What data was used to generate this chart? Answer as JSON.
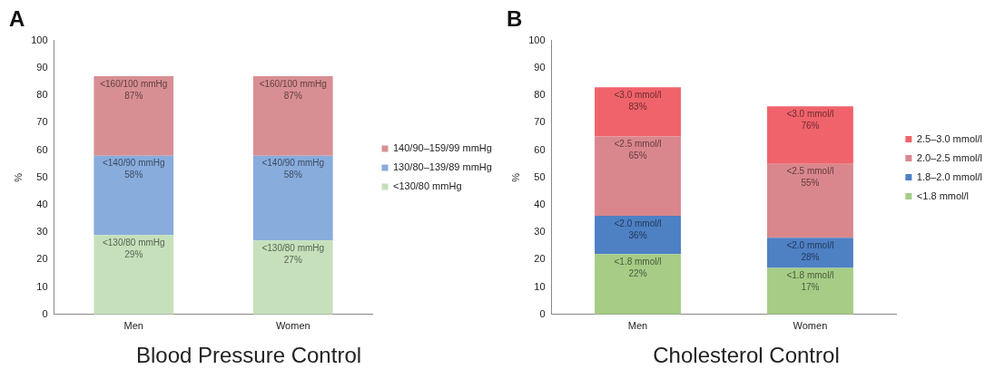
{
  "chart_data": [
    {
      "type": "bar",
      "title": "A",
      "ylabel": "%",
      "categories": [
        "Men",
        "Women"
      ],
      "stacked": true,
      "legend": "right",
      "grid": false,
      "ylim": [
        0,
        100
      ],
      "yticks": [
        0,
        10,
        20,
        30,
        40,
        50,
        60,
        70,
        80,
        90,
        100
      ],
      "annotations": [
        "Blood Pressure Control",
        {
          "text": "<130/80 mmHg\n29%",
          "x": "Men",
          "y": 29
        },
        {
          "text": "<130/80 mmHg\n27%",
          "x": "Women",
          "y": 27
        },
        {
          "text": "<140/90 mmHg\n58%",
          "x": "Men",
          "y": 58
        },
        {
          "text": "<140/90 mmHg\n58%",
          "x": "Women",
          "y": 58
        },
        {
          "text": "<160/100 mmHg\n87%",
          "x": "Men",
          "y": 87
        },
        {
          "text": "<160/100 mmHg\n87%",
          "x": "Women",
          "y": 87
        }
      ],
      "series": [
        {
          "name": "<130/80 mmHg",
          "color": "#c5e0bb",
          "values": [
            29,
            27
          ]
        },
        {
          "name": "130/80–139/89 mmHg",
          "color": "#88acdc",
          "values": [
            29,
            31
          ]
        },
        {
          "name": "140/90–159/99 mmHg",
          "color": "#d88f93",
          "values": [
            29,
            29
          ]
        }
      ]
    },
    {
      "type": "bar",
      "title": "B",
      "ylabel": "%",
      "categories": [
        "Men",
        "Women"
      ],
      "stacked": true,
      "legend": "right",
      "grid": false,
      "ylim": [
        0,
        100
      ],
      "yticks": [
        0,
        10,
        20,
        30,
        40,
        50,
        60,
        70,
        80,
        90,
        100
      ],
      "annotations": [
        "Cholesterol Control",
        {
          "text": "<1.8 mmol/l\n22%",
          "x": "Men",
          "y": 22
        },
        {
          "text": "<1.8 mmol/l\n17%",
          "x": "Women",
          "y": 17
        },
        {
          "text": "<2.0 mmol/l\n36%",
          "x": "Men",
          "y": 36
        },
        {
          "text": "<2.0 mmol/l\n28%",
          "x": "Women",
          "y": 28
        },
        {
          "text": "<2.5 mmol/l\n65%",
          "x": "Men",
          "y": 65
        },
        {
          "text": "<2.5 mmol/l\n55%",
          "x": "Women",
          "y": 55
        },
        {
          "text": "<3.0 mmol/l\n83%",
          "x": "Men",
          "y": 83
        },
        {
          "text": "<3.0 mmol/l\n76%",
          "x": "Women",
          "y": 76
        }
      ],
      "series": [
        {
          "name": "<1.8 mmol/l",
          "color": "#a6cc86",
          "values": [
            22,
            17
          ]
        },
        {
          "name": "1.8–2.0 mmol/l",
          "color": "#4e80c4",
          "values": [
            14,
            11
          ]
        },
        {
          "name": "2.0–2.5 mmol/l",
          "color": "#d9878d",
          "values": [
            29,
            27
          ]
        },
        {
          "name": "2.5–3.0 mmol/l",
          "color": "#f0636b",
          "values": [
            18,
            21
          ]
        }
      ]
    }
  ]
}
